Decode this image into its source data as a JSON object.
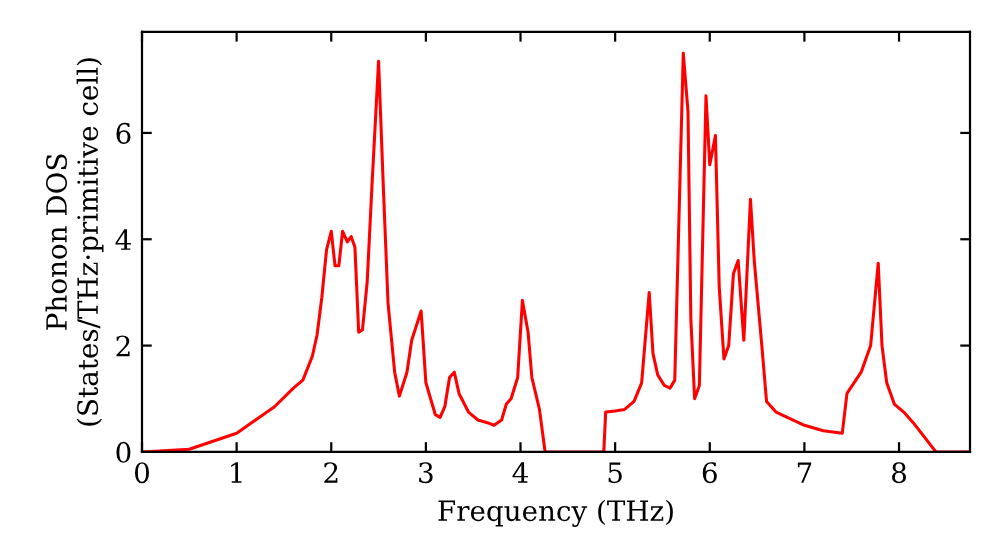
{
  "chart_data": {
    "type": "line",
    "xlabel": "Frequency (THz)",
    "ylabel": "Phonon DOS\n(States/THz·primitive cell)",
    "xlim": [
      0,
      8.75
    ],
    "ylim": [
      0,
      7.9
    ],
    "xticks": [
      0,
      1,
      2,
      3,
      4,
      5,
      6,
      7,
      8
    ],
    "yticks": [
      0,
      2,
      4,
      6
    ],
    "grid": false,
    "marker": "none",
    "line_style": "solid",
    "series": [
      {
        "color": "#ff0000",
        "x": [
          0,
          0.5,
          1.0,
          1.2,
          1.4,
          1.6,
          1.7,
          1.8,
          1.85,
          1.9,
          1.95,
          2.0,
          2.04,
          2.08,
          2.12,
          2.17,
          2.21,
          2.25,
          2.29,
          2.33,
          2.38,
          2.43,
          2.5,
          2.55,
          2.6,
          2.67,
          2.72,
          2.8,
          2.85,
          2.95,
          3.0,
          3.1,
          3.15,
          3.2,
          3.25,
          3.3,
          3.35,
          3.45,
          3.55,
          3.65,
          3.72,
          3.8,
          3.85,
          3.9,
          3.97,
          4.02,
          4.08,
          4.12,
          4.2,
          4.26,
          4.88,
          4.9,
          5.0,
          5.1,
          5.2,
          5.28,
          5.36,
          5.4,
          5.45,
          5.52,
          5.58,
          5.63,
          5.72,
          5.77,
          5.8,
          5.84,
          5.89,
          5.96,
          6.0,
          6.06,
          6.1,
          6.15,
          6.2,
          6.25,
          6.3,
          6.36,
          6.43,
          6.47,
          6.55,
          6.6,
          6.7,
          7.0,
          7.2,
          7.4,
          7.45,
          7.6,
          7.7,
          7.78,
          7.82,
          7.87,
          7.95,
          8.05,
          8.15,
          8.39,
          8.75
        ],
        "values": [
          0,
          0.05,
          0.35,
          0.6,
          0.85,
          1.2,
          1.35,
          1.8,
          2.2,
          2.9,
          3.8,
          4.15,
          3.5,
          3.5,
          4.15,
          3.95,
          4.05,
          3.85,
          2.25,
          2.3,
          3.2,
          5.0,
          7.35,
          5.0,
          2.8,
          1.5,
          1.05,
          1.5,
          2.1,
          2.65,
          1.3,
          0.7,
          0.65,
          0.85,
          1.4,
          1.5,
          1.1,
          0.75,
          0.6,
          0.55,
          0.5,
          0.6,
          0.9,
          1.0,
          1.4,
          2.85,
          2.25,
          1.4,
          0.8,
          0,
          0,
          0.75,
          0.77,
          0.8,
          0.95,
          1.3,
          3.0,
          1.85,
          1.45,
          1.25,
          1.2,
          1.35,
          7.5,
          6.4,
          2.5,
          1.0,
          1.25,
          6.7,
          5.4,
          5.95,
          3.1,
          1.75,
          2.0,
          3.35,
          3.6,
          2.1,
          4.75,
          3.6,
          2.0,
          0.95,
          0.75,
          0.5,
          0.4,
          0.35,
          1.1,
          1.5,
          2.0,
          3.55,
          2.0,
          1.3,
          0.9,
          0.75,
          0.55,
          0,
          0
        ]
      }
    ]
  }
}
